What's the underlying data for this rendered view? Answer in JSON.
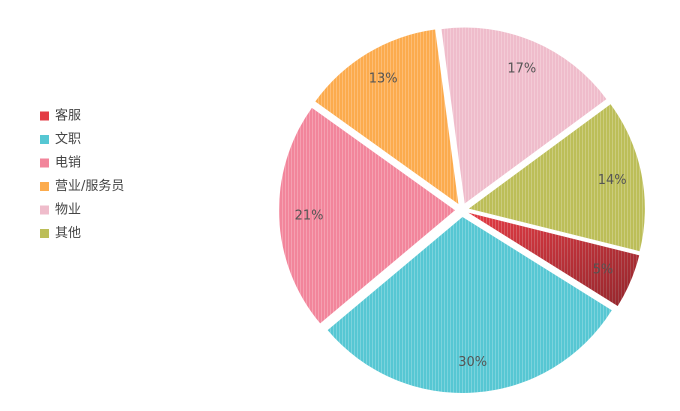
{
  "chart_data": {
    "type": "pie",
    "categories": [
      "客服",
      "文职",
      "电销",
      "营业/服务员",
      "物业",
      "其他"
    ],
    "values": [
      5,
      30,
      21,
      13,
      17,
      14
    ],
    "value_labels": [
      "5%",
      "30%",
      "21%",
      "13%",
      "17%",
      "14%"
    ],
    "colors": [
      "#e33b44",
      "#56c7d3",
      "#f2859b",
      "#fcab4d",
      "#efbccb",
      "#bcbe58"
    ],
    "legend": "left"
  }
}
